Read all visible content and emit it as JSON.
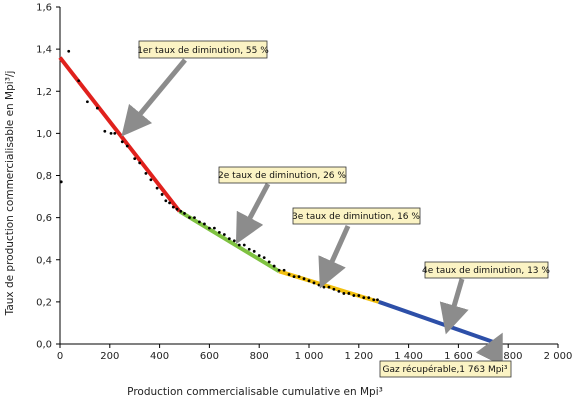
{
  "chart_data": {
    "type": "scatter",
    "title": "",
    "xlabel": "Production commercialisable cumulative en Mpi³",
    "ylabel": "Taux de production commercialisable en Mpi³/j",
    "xlim": [
      0,
      2000
    ],
    "ylim": [
      0,
      1.6
    ],
    "x_ticks": [
      0,
      200,
      400,
      600,
      800,
      1000,
      1200,
      1400,
      1600,
      1800,
      2000
    ],
    "x_tick_labels": [
      "0",
      "200",
      "400",
      "600",
      "800",
      "1 000",
      "1 200",
      "1 400",
      "1 600",
      "1 800",
      "2 000"
    ],
    "y_ticks": [
      0,
      0.2,
      0.4,
      0.6,
      0.8,
      1.0,
      1.2,
      1.4,
      1.6
    ],
    "y_tick_labels": [
      "0,0",
      "0,2",
      "0,4",
      "0,6",
      "0,8",
      "1,0",
      "1,2",
      "1,4",
      "1,6"
    ],
    "grid": false,
    "colors": {
      "points": "#000000",
      "segment1": "#e0211d",
      "segment2": "#7fc241",
      "segment3": "#f2c00f",
      "segment4": "#2d4fa8",
      "annotation_fill": "#fbf3c4",
      "arrow": "#8c8c8c"
    },
    "segments": [
      {
        "x": [
          0,
          480
        ],
        "y": [
          1.36,
          0.63
        ],
        "color": "#e0211d"
      },
      {
        "x": [
          480,
          880
        ],
        "y": [
          0.63,
          0.345
        ],
        "color": "#7fc241"
      },
      {
        "x": [
          880,
          1280
        ],
        "y": [
          0.345,
          0.2
        ],
        "color": "#f2c00f"
      },
      {
        "x": [
          1280,
          1763
        ],
        "y": [
          0.2,
          0.0
        ],
        "color": "#2d4fa8"
      }
    ],
    "points": [
      {
        "x": 5,
        "y": 0.77
      },
      {
        "x": 35,
        "y": 1.39
      },
      {
        "x": 75,
        "y": 1.25
      },
      {
        "x": 110,
        "y": 1.15
      },
      {
        "x": 150,
        "y": 1.12
      },
      {
        "x": 180,
        "y": 1.01
      },
      {
        "x": 205,
        "y": 1.0
      },
      {
        "x": 220,
        "y": 1.0
      },
      {
        "x": 250,
        "y": 0.96
      },
      {
        "x": 270,
        "y": 0.94
      },
      {
        "x": 300,
        "y": 0.88
      },
      {
        "x": 320,
        "y": 0.86
      },
      {
        "x": 345,
        "y": 0.81
      },
      {
        "x": 365,
        "y": 0.78
      },
      {
        "x": 390,
        "y": 0.74
      },
      {
        "x": 410,
        "y": 0.71
      },
      {
        "x": 425,
        "y": 0.68
      },
      {
        "x": 440,
        "y": 0.67
      },
      {
        "x": 455,
        "y": 0.65
      },
      {
        "x": 470,
        "y": 0.64
      },
      {
        "x": 485,
        "y": 0.63
      },
      {
        "x": 500,
        "y": 0.62
      },
      {
        "x": 520,
        "y": 0.6
      },
      {
        "x": 540,
        "y": 0.6
      },
      {
        "x": 560,
        "y": 0.58
      },
      {
        "x": 580,
        "y": 0.57
      },
      {
        "x": 600,
        "y": 0.55
      },
      {
        "x": 620,
        "y": 0.55
      },
      {
        "x": 640,
        "y": 0.53
      },
      {
        "x": 660,
        "y": 0.52
      },
      {
        "x": 680,
        "y": 0.5
      },
      {
        "x": 700,
        "y": 0.49
      },
      {
        "x": 720,
        "y": 0.47
      },
      {
        "x": 740,
        "y": 0.47
      },
      {
        "x": 760,
        "y": 0.45
      },
      {
        "x": 780,
        "y": 0.44
      },
      {
        "x": 800,
        "y": 0.42
      },
      {
        "x": 820,
        "y": 0.41
      },
      {
        "x": 840,
        "y": 0.39
      },
      {
        "x": 860,
        "y": 0.37
      },
      {
        "x": 880,
        "y": 0.35
      },
      {
        "x": 900,
        "y": 0.35
      },
      {
        "x": 920,
        "y": 0.33
      },
      {
        "x": 940,
        "y": 0.32
      },
      {
        "x": 960,
        "y": 0.32
      },
      {
        "x": 980,
        "y": 0.31
      },
      {
        "x": 1000,
        "y": 0.3
      },
      {
        "x": 1020,
        "y": 0.29
      },
      {
        "x": 1040,
        "y": 0.28
      },
      {
        "x": 1060,
        "y": 0.27
      },
      {
        "x": 1080,
        "y": 0.27
      },
      {
        "x": 1100,
        "y": 0.26
      },
      {
        "x": 1120,
        "y": 0.25
      },
      {
        "x": 1140,
        "y": 0.24
      },
      {
        "x": 1160,
        "y": 0.24
      },
      {
        "x": 1180,
        "y": 0.23
      },
      {
        "x": 1200,
        "y": 0.23
      },
      {
        "x": 1220,
        "y": 0.22
      },
      {
        "x": 1240,
        "y": 0.22
      },
      {
        "x": 1260,
        "y": 0.21
      },
      {
        "x": 1275,
        "y": 0.21
      }
    ],
    "annotations": [
      {
        "text": "1er taux de diminution, 55 %",
        "arrow_to": [
          280,
          1.0
        ]
      },
      {
        "text": "2e taux de diminution, 26 %",
        "arrow_to": [
          740,
          0.52
        ]
      },
      {
        "text": "3e taux de diminution, 16 %",
        "arrow_to": [
          1080,
          0.27
        ]
      },
      {
        "text": "4e taux de diminution, 13 %",
        "arrow_to": [
          1570,
          0.1
        ]
      },
      {
        "text": "Gaz récupérable,1 763 Mpi³",
        "arrow_to": [
          1763,
          0.0
        ]
      }
    ]
  }
}
